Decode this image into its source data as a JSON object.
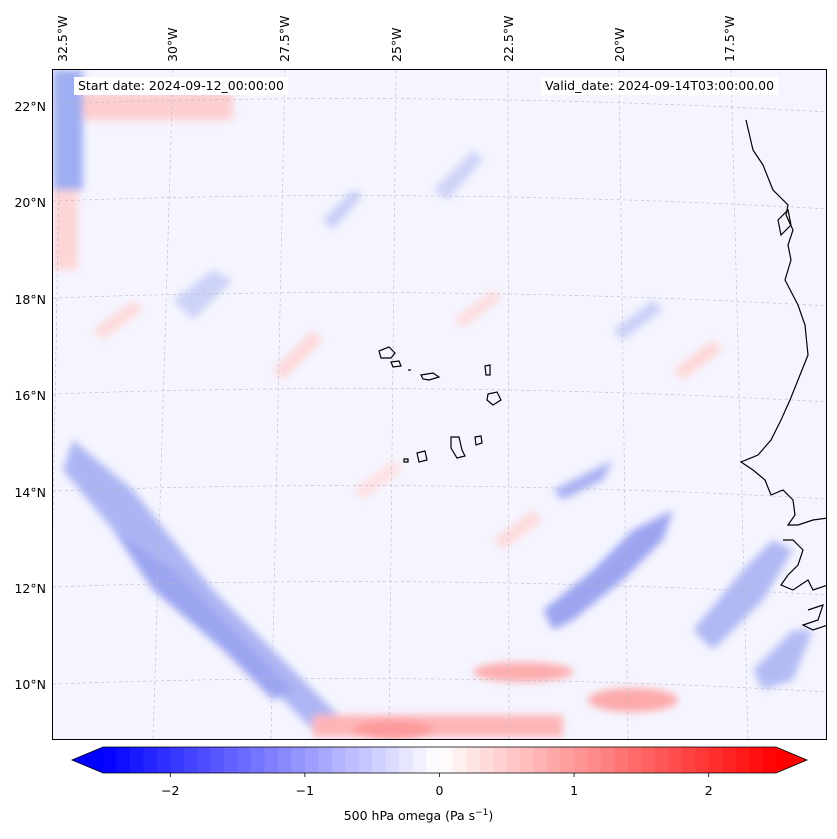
{
  "annotations": {
    "start_date": "Start date: 2024-09-12_00:00:00",
    "valid_date": "Valid_date: 2024-09-14T03:00:00.00"
  },
  "longitude_labels": [
    "32.5°W",
    "30°W",
    "27.5°W",
    "25°W",
    "22.5°W",
    "20°W",
    "17.5°W"
  ],
  "latitude_labels": [
    "22°N",
    "20°N",
    "18°N",
    "16°N",
    "14°N",
    "12°N",
    "10°N"
  ],
  "colorbar": {
    "label_prefix": "500 hPa omega (Pa s",
    "label_exp": "−1",
    "label_suffix": ")",
    "ticks": [
      "−2",
      "−1",
      "0",
      "1",
      "2"
    ],
    "tick_values": [
      -2,
      -1,
      0,
      1,
      2
    ],
    "range": [
      -2.5,
      2.5
    ],
    "cmap": "bwr",
    "extend": "both",
    "colors": {
      "negative": "#0000ff",
      "zero": "#ffffff",
      "positive": "#ff0000"
    }
  },
  "map": {
    "projection": "conic",
    "lon_range_deg": [
      -33,
      -16
    ],
    "lat_range_deg": [
      9,
      22.8
    ],
    "grid": true
  }
}
